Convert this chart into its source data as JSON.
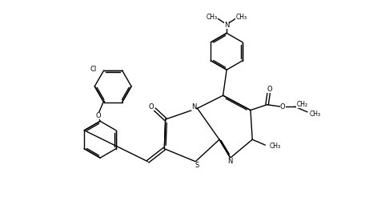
{
  "bg_color": "#ffffff",
  "line_color": "#000000",
  "figsize": [
    4.61,
    2.66
  ],
  "dpi": 100,
  "lw": 1.0,
  "font_size": 6.0,
  "xlim": [
    0,
    100
  ],
  "ylim": [
    0,
    57
  ]
}
